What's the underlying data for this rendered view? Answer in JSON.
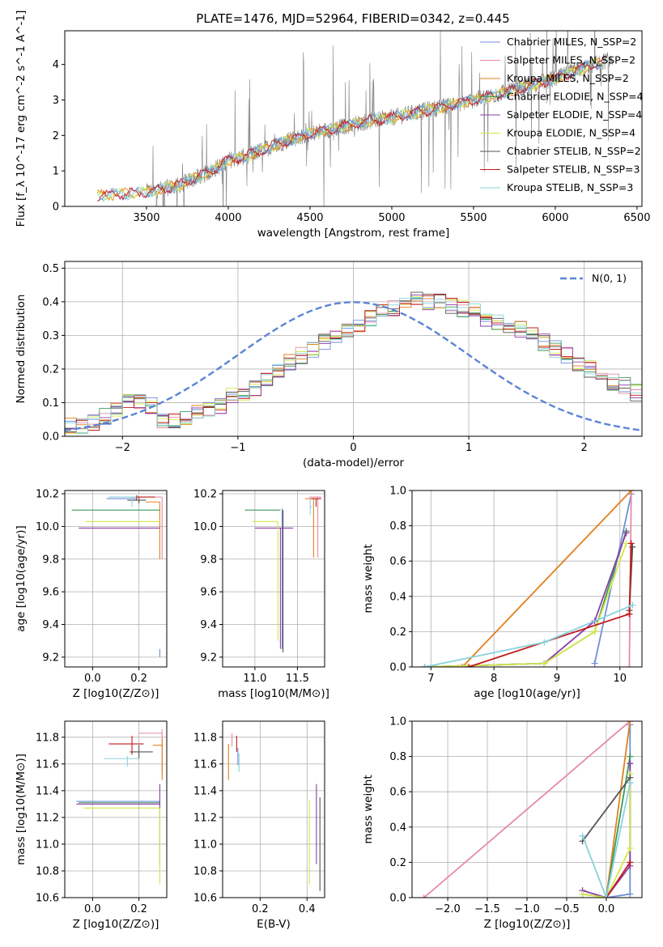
{
  "figure": {
    "title": "PLATE=1476, MJD=52964, FIBERID=0342, z=0.445",
    "colors": {
      "c0": "#6f8fd8",
      "c1": "#e88aa6",
      "c2": "#e0801e",
      "c3": "#3a9a5a",
      "c4": "#8e3ca6",
      "c5": "#d4e84a",
      "c6": "#555555",
      "c7": "#c21a1a",
      "c8": "#88d2dc",
      "norm": "#5b84d6",
      "obs": "#808080"
    },
    "legend": [
      "Chabrier MILES, N_SSP=2",
      "Salpeter MILES, N_SSP=2",
      "Kroupa MILES, N_SSP=2",
      "Chabrier ELODIE, N_SSP=4",
      "Salpeter ELODIE, N_SSP=4",
      "Kroupa ELODIE, N_SSP=4",
      "Chabrier STELIB, N_SSP=2",
      "Salpeter STELIB, N_SSP=3",
      "Kroupa STELIB, N_SSP=3"
    ],
    "legend2": "N(0, 1)"
  },
  "chart_data": [
    {
      "id": "spectrum",
      "type": "line",
      "xlabel": "wavelength [Angstrom, rest frame]",
      "ylabel": "Flux [f_λ 10^-17 erg cm^-2 s^-1 A^-1]",
      "xlim": [
        3000,
        6530
      ],
      "ylim": [
        0,
        4.95
      ],
      "xticks": [
        3500,
        4000,
        4500,
        5000,
        5500,
        6000,
        6500
      ],
      "yticks": [
        0,
        1,
        2,
        3,
        4
      ],
      "model_continuum": {
        "x": [
          3200,
          3500,
          3700,
          3900,
          4000,
          4100,
          4300,
          4500,
          4700,
          4850,
          5000,
          5200,
          5400,
          5600,
          5800,
          6000,
          6200,
          6300
        ],
        "y": [
          0.3,
          0.4,
          0.6,
          1.0,
          1.3,
          1.4,
          1.75,
          2.05,
          2.25,
          2.4,
          2.5,
          2.7,
          2.9,
          3.1,
          3.35,
          3.6,
          3.95,
          4.1
        ]
      },
      "observed_range": [
        3500,
        6350
      ]
    },
    {
      "id": "residuals",
      "type": "step",
      "xlabel": "(data-model)/error",
      "ylabel": "Normed distribution",
      "xlim": [
        -2.5,
        2.5
      ],
      "ylim": [
        0,
        0.52
      ],
      "xticks": [
        -2,
        -1,
        0,
        1,
        2
      ],
      "yticks": [
        0,
        0.1,
        0.2,
        0.3,
        0.4,
        0.5
      ],
      "bin_width": 0.1,
      "bins_start": -2.5,
      "base_hist": [
        0.03,
        0.03,
        0.04,
        0.06,
        0.08,
        0.1,
        0.1,
        0.09,
        0.05,
        0.05,
        0.06,
        0.07,
        0.08,
        0.09,
        0.12,
        0.13,
        0.14,
        0.17,
        0.19,
        0.22,
        0.24,
        0.26,
        0.28,
        0.3,
        0.31,
        0.33,
        0.35,
        0.37,
        0.38,
        0.4,
        0.41,
        0.4,
        0.4,
        0.39,
        0.38,
        0.37,
        0.35,
        0.34,
        0.33,
        0.32,
        0.3,
        0.28,
        0.26,
        0.24,
        0.21,
        0.2,
        0.18,
        0.16,
        0.15,
        0.13,
        0.12,
        0.1,
        0.09,
        0.08,
        0.07,
        0.07,
        0.06,
        0.06,
        0.05,
        0.05
      ],
      "normal_curve": {
        "mean": 0,
        "sigma": 1
      }
    },
    {
      "id": "age_vs_Z",
      "type": "errorbar",
      "xlabel": "Z [log10(Z/Z⊙)]",
      "ylabel": "age [log10(age/yr)]",
      "xlim": [
        -0.12,
        0.32
      ],
      "ylim": [
        9.14,
        10.22
      ],
      "xticks": [
        0.0,
        0.2
      ],
      "yticks": [
        9.2,
        9.4,
        9.6,
        9.8,
        10.0,
        10.2
      ],
      "points": [
        {
          "s": 0,
          "x": 0.19,
          "y": 10.17,
          "xerr": [
            0.13,
            0.0
          ],
          "yerr": [
            0.0,
            0.02
          ]
        },
        {
          "s": 0,
          "x": 0.29,
          "y": 9.25,
          "xerr": [
            0,
            0
          ],
          "yerr": [
            0.05,
            0.0
          ]
        },
        {
          "s": 1,
          "x": 0.3,
          "y": 10.18,
          "xerr": [
            0.03,
            0.0
          ],
          "yerr": [
            0.38,
            0.0
          ]
        },
        {
          "s": 2,
          "x": 0.29,
          "y": 10.15,
          "xerr": [
            0.06,
            0.0
          ],
          "yerr": [
            0.35,
            0.0
          ]
        },
        {
          "s": 3,
          "x": 0.29,
          "y": 10.1,
          "xerr": [
            0.38,
            0.0
          ],
          "yerr": [
            0.0,
            0.0
          ]
        },
        {
          "s": 4,
          "x": 0.29,
          "y": 9.99,
          "xerr": [
            0.35,
            0.0
          ],
          "yerr": [
            0.0,
            0.0
          ]
        },
        {
          "s": 5,
          "x": 0.29,
          "y": 10.03,
          "xerr": [
            0.32,
            0.0
          ],
          "yerr": [
            0.0,
            0.0
          ]
        },
        {
          "s": 6,
          "x": 0.2,
          "y": 10.16,
          "xerr": [
            0.05,
            0.03
          ],
          "yerr": [
            0.02,
            0.02
          ]
        },
        {
          "s": 7,
          "x": 0.19,
          "y": 10.18,
          "xerr": [
            0.02,
            0.08
          ],
          "yerr": [
            0.02,
            0.01
          ]
        },
        {
          "s": 8,
          "x": 0.17,
          "y": 10.18,
          "xerr": [
            0.1,
            0.02
          ],
          "yerr": [
            0.06,
            0.0
          ]
        }
      ]
    },
    {
      "id": "age_vs_mass",
      "type": "errorbar",
      "xlabel": "mass [log10(M/M⊙)]",
      "ylabel": "",
      "xlim": [
        10.62,
        11.82
      ],
      "ylim": [
        9.14,
        10.22
      ],
      "xticks": [
        11.0,
        11.5
      ],
      "yticks": [
        9.2,
        9.4,
        9.6,
        9.8,
        10.0,
        10.2
      ],
      "points": [
        {
          "s": 0,
          "x": 11.32,
          "y": 9.25,
          "xerr": [
            0,
            0
          ],
          "yerr": [
            0.0,
            0.86
          ]
        },
        {
          "s": 1,
          "x": 11.74,
          "y": 10.18,
          "xerr": [
            0.1,
            0.04
          ],
          "yerr": [
            0.37,
            0.0
          ]
        },
        {
          "s": 2,
          "x": 11.69,
          "y": 10.17,
          "xerr": [
            0.1,
            0.04
          ],
          "yerr": [
            0.36,
            0.0
          ]
        },
        {
          "s": 3,
          "x": 11.3,
          "y": 10.1,
          "xerr": [
            0.42,
            0.0
          ],
          "yerr": [
            0.0,
            0.0
          ]
        },
        {
          "s": 4,
          "x": 11.3,
          "y": 9.99,
          "xerr": [
            0.3,
            0.15
          ],
          "yerr": [
            0.74,
            0.0
          ]
        },
        {
          "s": 5,
          "x": 11.27,
          "y": 10.03,
          "xerr": [
            0.3,
            0.0
          ],
          "yerr": [
            0.73,
            0.0
          ]
        },
        {
          "s": 6,
          "x": 11.33,
          "y": 10.1,
          "xerr": [
            0.0,
            0.0
          ],
          "yerr": [
            0.87,
            0.0
          ]
        },
        {
          "s": 7,
          "x": 11.72,
          "y": 10.17,
          "xerr": [
            0.06,
            0.06
          ],
          "yerr": [
            0.05,
            0.0
          ]
        },
        {
          "s": 8,
          "x": 11.65,
          "y": 10.12,
          "xerr": [
            0.0,
            0.02
          ],
          "yerr": [
            0.05,
            0.05
          ]
        }
      ]
    },
    {
      "id": "mass_weight_vs_age",
      "type": "line",
      "xlabel": "age [log10(age/yr)]",
      "ylabel": "mass weight",
      "xlim": [
        6.7,
        10.35
      ],
      "ylim": [
        0,
        1.0
      ],
      "xticks": [
        7,
        8,
        9,
        10
      ],
      "yticks": [
        0.0,
        0.2,
        0.4,
        0.6,
        0.8,
        1.0
      ],
      "series": [
        {
          "s": 0,
          "x": [
            9.6,
            10.18
          ],
          "y": [
            0.02,
            0.98
          ]
        },
        {
          "s": 1,
          "x": [
            10.15,
            10.18
          ],
          "y": [
            0.0,
            1.0
          ]
        },
        {
          "s": 2,
          "x": [
            7.5,
            10.18
          ],
          "y": [
            0.0,
            1.0
          ]
        },
        {
          "s": 3,
          "x": [
            6.9,
            8.8,
            9.6,
            10.1
          ],
          "y": [
            0.0,
            0.02,
            0.2,
            0.77
          ]
        },
        {
          "s": 4,
          "x": [
            6.9,
            8.8,
            9.6,
            10.1
          ],
          "y": [
            0.0,
            0.02,
            0.26,
            0.76
          ]
        },
        {
          "s": 5,
          "x": [
            6.9,
            8.8,
            9.6,
            10.1
          ],
          "y": [
            0.0,
            0.02,
            0.2,
            0.7
          ]
        },
        {
          "s": 6,
          "x": [
            10.15,
            10.2
          ],
          "y": [
            0.32,
            0.68
          ]
        },
        {
          "s": 7,
          "x": [
            7.6,
            10.15,
            10.18
          ],
          "y": [
            0.0,
            0.3,
            0.7
          ]
        },
        {
          "s": 8,
          "x": [
            6.9,
            8.8,
            10.2
          ],
          "y": [
            0.0,
            0.14,
            0.35
          ]
        }
      ]
    },
    {
      "id": "mass_vs_Z",
      "type": "errorbar",
      "xlabel": "Z [log10(Z/Z⊙)]",
      "ylabel": "mass [log10(M/M⊙)]",
      "xlim": [
        -0.12,
        0.32
      ],
      "ylim": [
        10.6,
        11.92
      ],
      "xticks": [
        0.0,
        0.2
      ],
      "yticks": [
        10.6,
        10.8,
        11.0,
        11.2,
        11.4,
        11.6,
        11.8
      ],
      "points": [
        {
          "s": 0,
          "x": 0.29,
          "y": 11.32,
          "xerr": [
            0.36,
            0.0
          ],
          "yerr": [
            0.0,
            0.0
          ]
        },
        {
          "s": 1,
          "x": 0.3,
          "y": 11.83,
          "xerr": [
            0.1,
            0.0
          ],
          "yerr": [
            0.3,
            0.03
          ]
        },
        {
          "s": 2,
          "x": 0.3,
          "y": 11.74,
          "xerr": [
            0.04,
            0.0
          ],
          "yerr": [
            0.26,
            0.05
          ]
        },
        {
          "s": 3,
          "x": 0.29,
          "y": 11.31,
          "xerr": [
            0.35,
            0.0
          ],
          "yerr": [
            0.0,
            0.0
          ]
        },
        {
          "s": 4,
          "x": 0.29,
          "y": 11.3,
          "xerr": [
            0.36,
            0.0
          ],
          "yerr": [
            0.45,
            0.15
          ]
        },
        {
          "s": 5,
          "x": 0.29,
          "y": 11.27,
          "xerr": [
            0.33,
            0.0
          ],
          "yerr": [
            0.57,
            0.0
          ]
        },
        {
          "s": 6,
          "x": 0.2,
          "y": 11.69,
          "xerr": [
            0.04,
            0.06
          ],
          "yerr": [
            0.05,
            0.05
          ]
        },
        {
          "s": 7,
          "x": 0.17,
          "y": 11.75,
          "xerr": [
            0.1,
            0.05
          ],
          "yerr": [
            0.08,
            0.06
          ]
        },
        {
          "s": 8,
          "x": 0.15,
          "y": 11.64,
          "xerr": [
            0.1,
            0.05
          ],
          "yerr": [
            0.06,
            0.02
          ]
        }
      ]
    },
    {
      "id": "mass_vs_ebv",
      "type": "errorbar",
      "xlabel": "E(B-V)",
      "ylabel": "",
      "xlim": [
        0.04,
        0.475
      ],
      "ylim": [
        10.6,
        11.92
      ],
      "xticks": [
        0.2,
        0.4
      ],
      "yticks": [
        10.6,
        10.8,
        11.0,
        11.2,
        11.4,
        11.6,
        11.8
      ],
      "points": [
        {
          "s": 0,
          "x": 0.105,
          "y": 11.67,
          "xerr": [
            0,
            0
          ],
          "yerr": [
            0.08,
            0.05
          ]
        },
        {
          "s": 1,
          "x": 0.08,
          "y": 11.83,
          "xerr": [
            0,
            0
          ],
          "yerr": [
            0.1,
            0.0
          ]
        },
        {
          "s": 2,
          "x": 0.065,
          "y": 11.7,
          "xerr": [
            0,
            0
          ],
          "yerr": [
            0.22,
            0.05
          ]
        },
        {
          "s": 4,
          "x": 0.44,
          "y": 11.3,
          "xerr": [
            0,
            0
          ],
          "yerr": [
            0.45,
            0.15
          ]
        },
        {
          "s": 5,
          "x": 0.41,
          "y": 11.0,
          "xerr": [
            0,
            0
          ],
          "yerr": [
            0.3,
            0.33
          ]
        },
        {
          "s": 6,
          "x": 0.455,
          "y": 11.0,
          "xerr": [
            0,
            0
          ],
          "yerr": [
            0.35,
            0.35
          ]
        },
        {
          "s": 7,
          "x": 0.1,
          "y": 11.75,
          "xerr": [
            0,
            0
          ],
          "yerr": [
            0.06,
            0.06
          ]
        },
        {
          "s": 8,
          "x": 0.11,
          "y": 11.62,
          "xerr": [
            0,
            0
          ],
          "yerr": [
            0.08,
            0.06
          ]
        }
      ]
    },
    {
      "id": "mass_weight_vs_Z",
      "type": "line",
      "xlabel": "Z [log10(Z/Z⊙)]",
      "ylabel": "mass weight",
      "xlim": [
        -2.45,
        0.45
      ],
      "ylim": [
        0,
        1.0
      ],
      "xticks": [
        -2.0,
        -1.5,
        -1.0,
        -0.5,
        0.0
      ],
      "yticks": [
        0.0,
        0.2,
        0.4,
        0.6,
        0.8,
        1.0
      ],
      "series": [
        {
          "s": 0,
          "x": [
            0.0,
            0.3,
            0.3
          ],
          "y": [
            0.0,
            0.02,
            0.98
          ]
        },
        {
          "s": 1,
          "x": [
            -2.3,
            0.3
          ],
          "y": [
            0.0,
            1.0
          ]
        },
        {
          "s": 2,
          "x": [
            0.0,
            0.3
          ],
          "y": [
            0.0,
            1.0
          ]
        },
        {
          "s": 3,
          "x": [
            -0.3,
            0.0,
            0.3
          ],
          "y": [
            0.02,
            0.0,
            0.8
          ]
        },
        {
          "s": 4,
          "x": [
            -0.3,
            0.0,
            0.3,
            0.3
          ],
          "y": [
            0.04,
            0.0,
            0.18,
            0.76
          ]
        },
        {
          "s": 5,
          "x": [
            -0.3,
            0.0,
            0.3,
            0.3
          ],
          "y": [
            0.02,
            0.0,
            0.28,
            0.7
          ]
        },
        {
          "s": 6,
          "x": [
            -0.3,
            0.3
          ],
          "y": [
            0.32,
            0.68
          ]
        },
        {
          "s": 7,
          "x": [
            0.0,
            0.3
          ],
          "y": [
            0.0,
            0.2
          ]
        },
        {
          "s": 8,
          "x": [
            -0.3,
            0.0,
            0.3
          ],
          "y": [
            0.35,
            0.0,
            0.65
          ]
        }
      ]
    }
  ]
}
